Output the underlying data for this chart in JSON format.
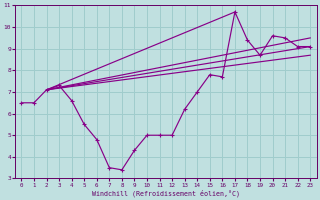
{
  "xlabel": "Windchill (Refroidissement éolien,°C)",
  "background_color": "#c0e0e0",
  "grid_color": "#a0cccc",
  "line_color": "#880088",
  "xlim": [
    -0.5,
    23.5
  ],
  "ylim": [
    3,
    11
  ],
  "xticks": [
    0,
    1,
    2,
    3,
    4,
    5,
    6,
    7,
    8,
    9,
    10,
    11,
    12,
    13,
    14,
    15,
    16,
    17,
    18,
    19,
    20,
    21,
    22,
    23
  ],
  "yticks": [
    3,
    4,
    5,
    6,
    7,
    8,
    9,
    10,
    11
  ],
  "main_x": [
    0,
    1,
    2,
    3,
    4,
    5,
    6,
    7,
    8,
    9,
    10,
    11,
    12,
    13,
    14,
    15,
    16,
    17,
    18,
    19,
    20,
    21,
    22,
    23
  ],
  "main_y": [
    6.5,
    6.5,
    7.1,
    7.3,
    6.6,
    5.5,
    4.8,
    3.5,
    3.4,
    4.3,
    5.0,
    5.0,
    5.0,
    6.2,
    7.0,
    7.8,
    7.7,
    10.7,
    9.4,
    8.7,
    9.6,
    9.5,
    9.1,
    9.1
  ],
  "line1_x": [
    2,
    23
  ],
  "line1_y": [
    7.1,
    9.1
  ],
  "line2_x": [
    2,
    23
  ],
  "line2_y": [
    7.1,
    9.5
  ],
  "line3_x": [
    2,
    17
  ],
  "line3_y": [
    7.1,
    10.7
  ],
  "line4_x": [
    2,
    23
  ],
  "line4_y": [
    7.1,
    8.7
  ]
}
